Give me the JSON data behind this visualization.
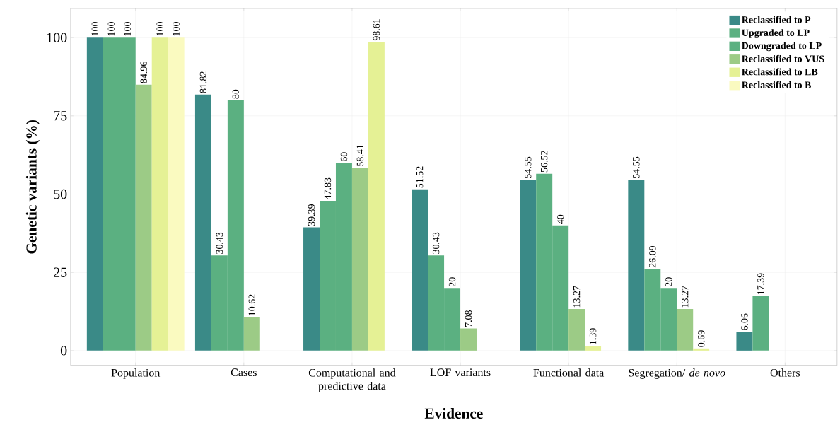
{
  "chart_data": {
    "type": "bar",
    "xlabel": "Evidence",
    "ylabel": "Genetic variants (%)",
    "categories": [
      "Population",
      "Cases",
      "Computational and predictive data",
      "LOF variants",
      "Functional data",
      "Segregation/ *de novo*",
      "Others"
    ],
    "series": [
      {
        "name": "Reclassified to P",
        "color": "#3a8a87",
        "values": [
          100,
          81.82,
          39.39,
          51.52,
          54.55,
          54.55,
          6.06
        ]
      },
      {
        "name": "Upgraded to LP",
        "color": "#5bb081",
        "values": [
          100,
          30.43,
          47.83,
          30.43,
          56.52,
          26.09,
          17.39
        ]
      },
      {
        "name": "Downgraded to LP",
        "color": "#5bb081",
        "values": [
          100,
          80,
          60,
          20,
          40,
          20,
          null
        ]
      },
      {
        "name": "Reclassified to VUS",
        "color": "#9ccb86",
        "values": [
          84.96,
          10.62,
          58.41,
          7.08,
          13.27,
          13.27,
          null
        ]
      },
      {
        "name": "Reclassified to LB",
        "color": "#e5f195",
        "values": [
          100,
          null,
          98.61,
          null,
          1.39,
          0.69,
          null
        ]
      },
      {
        "name": "Reclassified to B",
        "color": "#fafac0",
        "values": [
          100,
          null,
          null,
          null,
          null,
          null,
          null
        ]
      }
    ],
    "ylim": [
      -4.7,
      109.3
    ],
    "yticks": [
      0,
      25,
      50,
      75,
      100
    ],
    "grid": true,
    "legend": "top right",
    "data_labels": true
  }
}
